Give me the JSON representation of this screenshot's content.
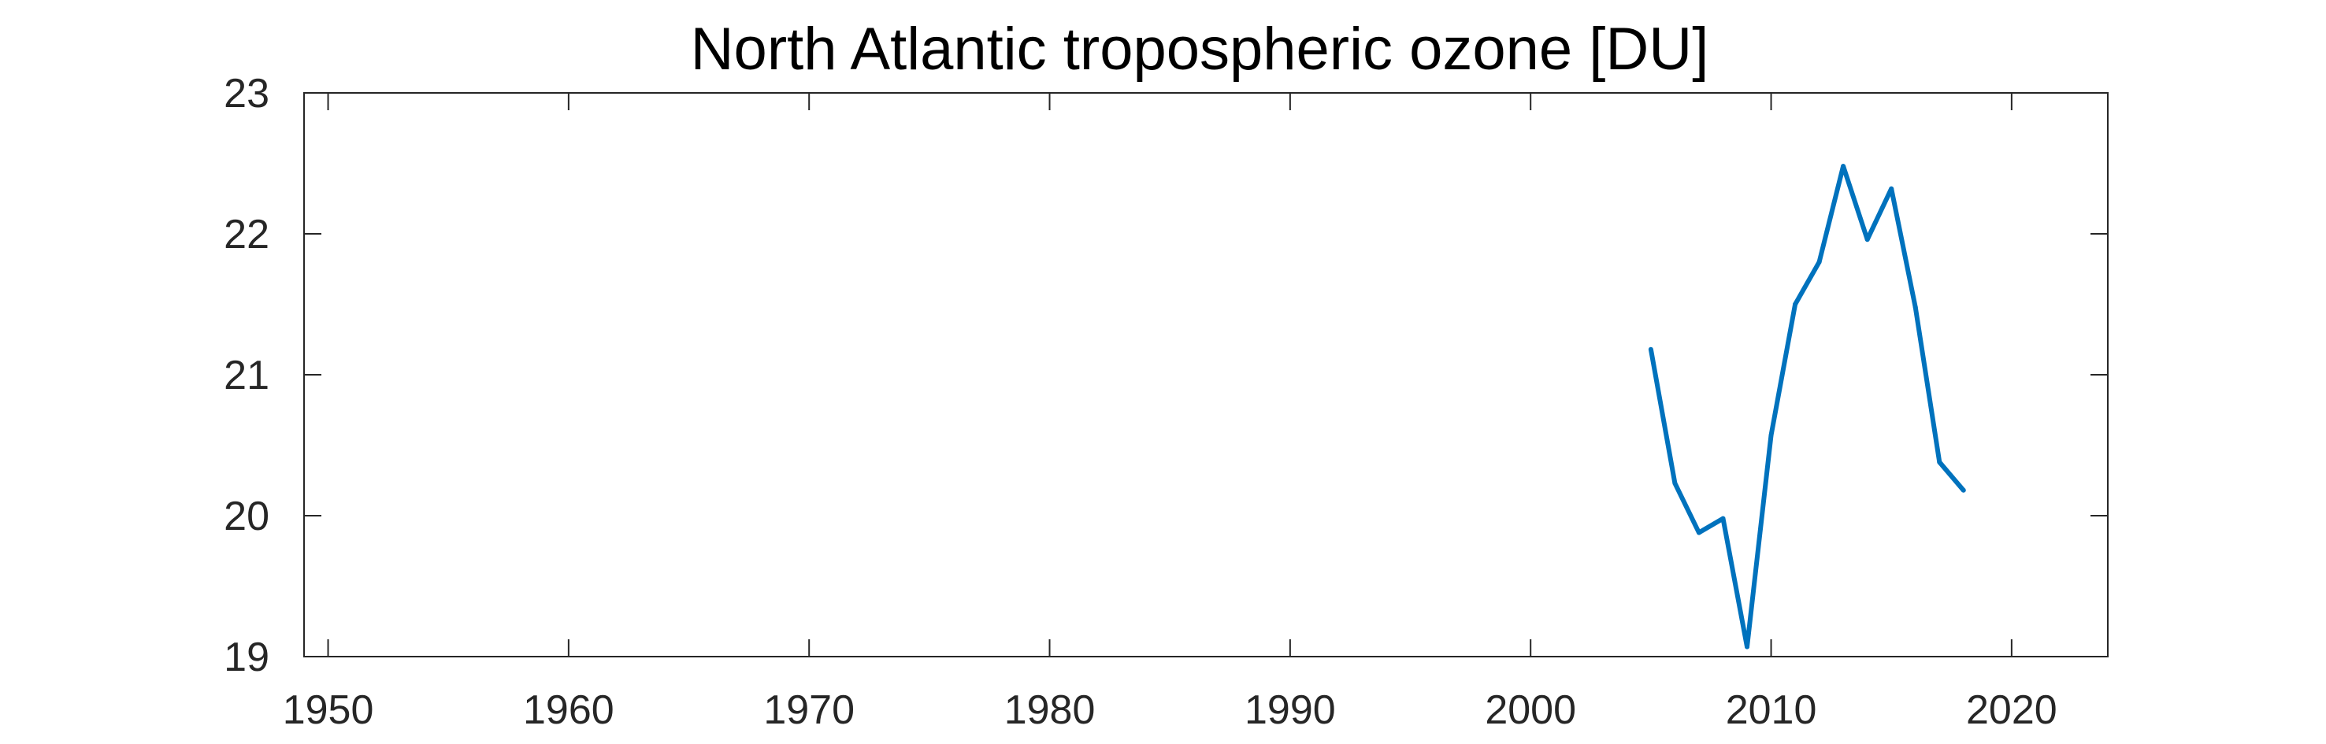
{
  "chart_data": {
    "type": "line",
    "title": "North Atlantic tropospheric ozone [DU]",
    "xlabel": "",
    "ylabel": "",
    "xlim": [
      1949,
      2024
    ],
    "ylim": [
      19,
      23
    ],
    "x_ticks": [
      1950,
      1960,
      1970,
      1980,
      1990,
      2000,
      2010,
      2020
    ],
    "y_ticks": [
      19,
      20,
      21,
      22,
      23
    ],
    "grid": false,
    "box": true,
    "series": [
      {
        "color": "#0072BD",
        "x": [
          2005,
          2006,
          2007,
          2008,
          2009,
          2010,
          2011,
          2012,
          2013,
          2014,
          2015,
          2016,
          2017,
          2018
        ],
        "y": [
          21.18,
          20.23,
          19.88,
          19.98,
          19.07,
          20.57,
          21.5,
          21.8,
          22.48,
          21.96,
          22.32,
          21.48,
          20.38,
          20.18
        ]
      }
    ]
  }
}
